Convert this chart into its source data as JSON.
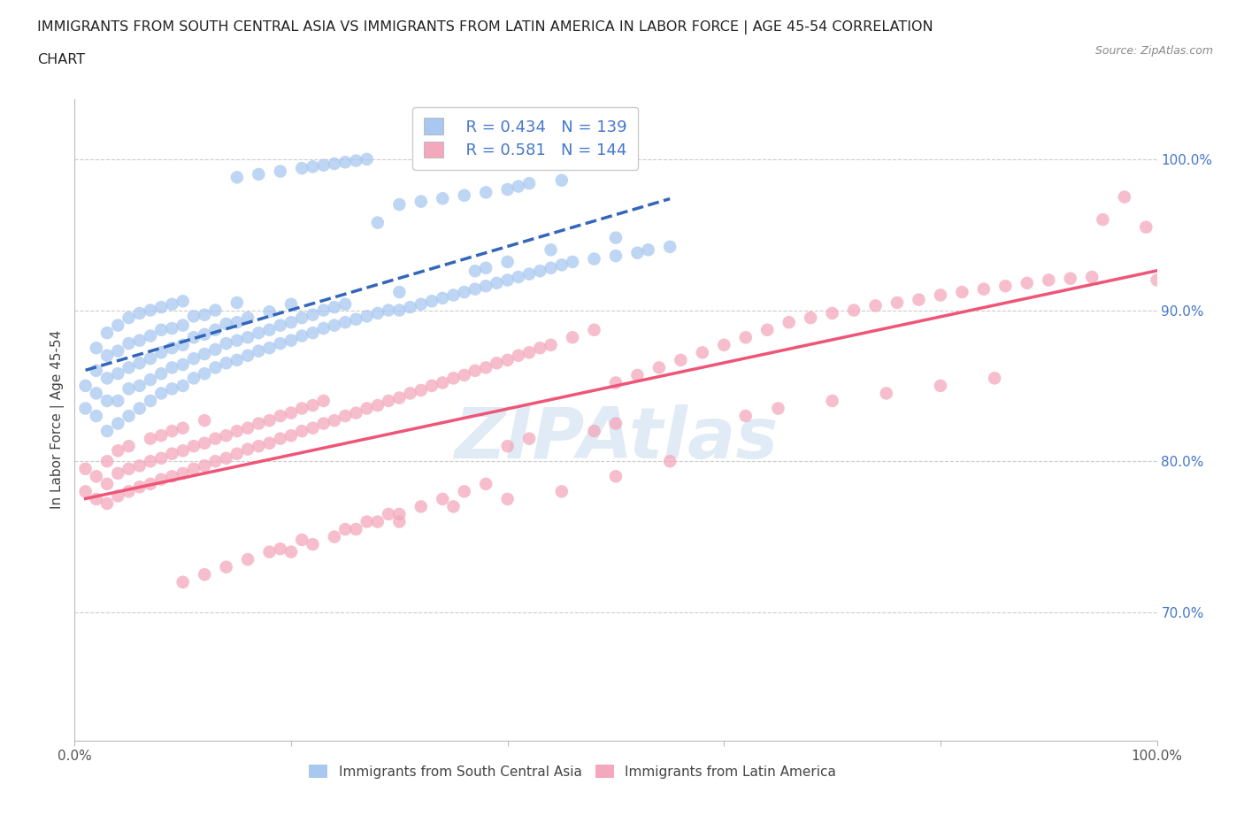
{
  "title_line1": "IMMIGRANTS FROM SOUTH CENTRAL ASIA VS IMMIGRANTS FROM LATIN AMERICA IN LABOR FORCE | AGE 45-54 CORRELATION",
  "title_line2": "CHART",
  "source_text": "Source: ZipAtlas.com",
  "ylabel": "In Labor Force | Age 45-54",
  "xlim": [
    0.0,
    1.0
  ],
  "ylim": [
    0.615,
    1.04
  ],
  "legend_r1": "0.434",
  "legend_n1": "139",
  "legend_r2": "0.581",
  "legend_n2": "144",
  "color_blue": "#A8C8F0",
  "color_pink": "#F4A8BC",
  "color_blue_line": "#3366BB",
  "color_pink_line": "#EE5577",
  "color_text_blue": "#4477CC",
  "watermark_color": "#C8DCF0",
  "scatter_blue_x": [
    0.01,
    0.01,
    0.02,
    0.02,
    0.02,
    0.02,
    0.03,
    0.03,
    0.03,
    0.03,
    0.03,
    0.04,
    0.04,
    0.04,
    0.04,
    0.04,
    0.05,
    0.05,
    0.05,
    0.05,
    0.05,
    0.06,
    0.06,
    0.06,
    0.06,
    0.06,
    0.07,
    0.07,
    0.07,
    0.07,
    0.07,
    0.08,
    0.08,
    0.08,
    0.08,
    0.08,
    0.09,
    0.09,
    0.09,
    0.09,
    0.09,
    0.1,
    0.1,
    0.1,
    0.1,
    0.1,
    0.11,
    0.11,
    0.11,
    0.11,
    0.12,
    0.12,
    0.12,
    0.12,
    0.13,
    0.13,
    0.13,
    0.13,
    0.14,
    0.14,
    0.14,
    0.15,
    0.15,
    0.15,
    0.15,
    0.16,
    0.16,
    0.16,
    0.17,
    0.17,
    0.18,
    0.18,
    0.18,
    0.19,
    0.19,
    0.2,
    0.2,
    0.2,
    0.21,
    0.21,
    0.22,
    0.22,
    0.23,
    0.23,
    0.24,
    0.24,
    0.25,
    0.25,
    0.26,
    0.27,
    0.28,
    0.29,
    0.3,
    0.3,
    0.31,
    0.32,
    0.33,
    0.34,
    0.35,
    0.36,
    0.37,
    0.37,
    0.38,
    0.38,
    0.39,
    0.4,
    0.4,
    0.41,
    0.42,
    0.43,
    0.44,
    0.44,
    0.45,
    0.46,
    0.48,
    0.5,
    0.5,
    0.52,
    0.53,
    0.55,
    0.28,
    0.3,
    0.32,
    0.34,
    0.36,
    0.38,
    0.4,
    0.41,
    0.42,
    0.45,
    0.15,
    0.17,
    0.19,
    0.21,
    0.22,
    0.23,
    0.24,
    0.25,
    0.26,
    0.27
  ],
  "scatter_blue_y": [
    0.835,
    0.85,
    0.83,
    0.845,
    0.86,
    0.875,
    0.82,
    0.84,
    0.855,
    0.87,
    0.885,
    0.825,
    0.84,
    0.858,
    0.873,
    0.89,
    0.83,
    0.848,
    0.862,
    0.878,
    0.895,
    0.835,
    0.85,
    0.865,
    0.88,
    0.898,
    0.84,
    0.854,
    0.868,
    0.883,
    0.9,
    0.845,
    0.858,
    0.872,
    0.887,
    0.902,
    0.848,
    0.862,
    0.875,
    0.888,
    0.904,
    0.85,
    0.864,
    0.877,
    0.89,
    0.906,
    0.855,
    0.868,
    0.882,
    0.896,
    0.858,
    0.871,
    0.884,
    0.897,
    0.862,
    0.874,
    0.887,
    0.9,
    0.865,
    0.878,
    0.891,
    0.867,
    0.88,
    0.892,
    0.905,
    0.87,
    0.882,
    0.895,
    0.873,
    0.885,
    0.875,
    0.887,
    0.899,
    0.878,
    0.89,
    0.88,
    0.892,
    0.904,
    0.883,
    0.895,
    0.885,
    0.897,
    0.888,
    0.9,
    0.89,
    0.902,
    0.892,
    0.904,
    0.894,
    0.896,
    0.898,
    0.9,
    0.9,
    0.912,
    0.902,
    0.904,
    0.906,
    0.908,
    0.91,
    0.912,
    0.914,
    0.926,
    0.916,
    0.928,
    0.918,
    0.92,
    0.932,
    0.922,
    0.924,
    0.926,
    0.928,
    0.94,
    0.93,
    0.932,
    0.934,
    0.936,
    0.948,
    0.938,
    0.94,
    0.942,
    0.958,
    0.97,
    0.972,
    0.974,
    0.976,
    0.978,
    0.98,
    0.982,
    0.984,
    0.986,
    0.988,
    0.99,
    0.992,
    0.994,
    0.995,
    0.996,
    0.997,
    0.998,
    0.999,
    1.0
  ],
  "scatter_pink_x": [
    0.01,
    0.01,
    0.02,
    0.02,
    0.03,
    0.03,
    0.03,
    0.04,
    0.04,
    0.04,
    0.05,
    0.05,
    0.05,
    0.06,
    0.06,
    0.07,
    0.07,
    0.07,
    0.08,
    0.08,
    0.08,
    0.09,
    0.09,
    0.09,
    0.1,
    0.1,
    0.1,
    0.11,
    0.11,
    0.12,
    0.12,
    0.12,
    0.13,
    0.13,
    0.14,
    0.14,
    0.15,
    0.15,
    0.16,
    0.16,
    0.17,
    0.17,
    0.18,
    0.18,
    0.19,
    0.19,
    0.2,
    0.2,
    0.21,
    0.21,
    0.22,
    0.22,
    0.23,
    0.23,
    0.24,
    0.25,
    0.26,
    0.27,
    0.28,
    0.29,
    0.3,
    0.31,
    0.32,
    0.33,
    0.34,
    0.35,
    0.36,
    0.37,
    0.38,
    0.39,
    0.4,
    0.41,
    0.42,
    0.43,
    0.44,
    0.46,
    0.48,
    0.5,
    0.52,
    0.54,
    0.56,
    0.58,
    0.6,
    0.62,
    0.64,
    0.66,
    0.68,
    0.7,
    0.72,
    0.74,
    0.76,
    0.78,
    0.8,
    0.82,
    0.84,
    0.86,
    0.88,
    0.9,
    0.92,
    0.94,
    0.95,
    0.97,
    0.99,
    1.0,
    0.3,
    0.35,
    0.4,
    0.45,
    0.5,
    0.55,
    0.2,
    0.22,
    0.24,
    0.26,
    0.28,
    0.3,
    0.32,
    0.34,
    0.36,
    0.38,
    0.1,
    0.12,
    0.14,
    0.16,
    0.18,
    0.19,
    0.21,
    0.25,
    0.27,
    0.29,
    0.4,
    0.42,
    0.48,
    0.5,
    0.62,
    0.65,
    0.7,
    0.75,
    0.8,
    0.85
  ],
  "scatter_pink_y": [
    0.78,
    0.795,
    0.775,
    0.79,
    0.772,
    0.785,
    0.8,
    0.777,
    0.792,
    0.807,
    0.78,
    0.795,
    0.81,
    0.783,
    0.797,
    0.785,
    0.8,
    0.815,
    0.788,
    0.802,
    0.817,
    0.79,
    0.805,
    0.82,
    0.792,
    0.807,
    0.822,
    0.795,
    0.81,
    0.797,
    0.812,
    0.827,
    0.8,
    0.815,
    0.802,
    0.817,
    0.805,
    0.82,
    0.808,
    0.822,
    0.81,
    0.825,
    0.812,
    0.827,
    0.815,
    0.83,
    0.817,
    0.832,
    0.82,
    0.835,
    0.822,
    0.837,
    0.825,
    0.84,
    0.827,
    0.83,
    0.832,
    0.835,
    0.837,
    0.84,
    0.842,
    0.845,
    0.847,
    0.85,
    0.852,
    0.855,
    0.857,
    0.86,
    0.862,
    0.865,
    0.867,
    0.87,
    0.872,
    0.875,
    0.877,
    0.882,
    0.887,
    0.852,
    0.857,
    0.862,
    0.867,
    0.872,
    0.877,
    0.882,
    0.887,
    0.892,
    0.895,
    0.898,
    0.9,
    0.903,
    0.905,
    0.907,
    0.91,
    0.912,
    0.914,
    0.916,
    0.918,
    0.92,
    0.921,
    0.922,
    0.96,
    0.975,
    0.955,
    0.92,
    0.76,
    0.77,
    0.775,
    0.78,
    0.79,
    0.8,
    0.74,
    0.745,
    0.75,
    0.755,
    0.76,
    0.765,
    0.77,
    0.775,
    0.78,
    0.785,
    0.72,
    0.725,
    0.73,
    0.735,
    0.74,
    0.742,
    0.748,
    0.755,
    0.76,
    0.765,
    0.81,
    0.815,
    0.82,
    0.825,
    0.83,
    0.835,
    0.84,
    0.845,
    0.85,
    0.855
  ]
}
